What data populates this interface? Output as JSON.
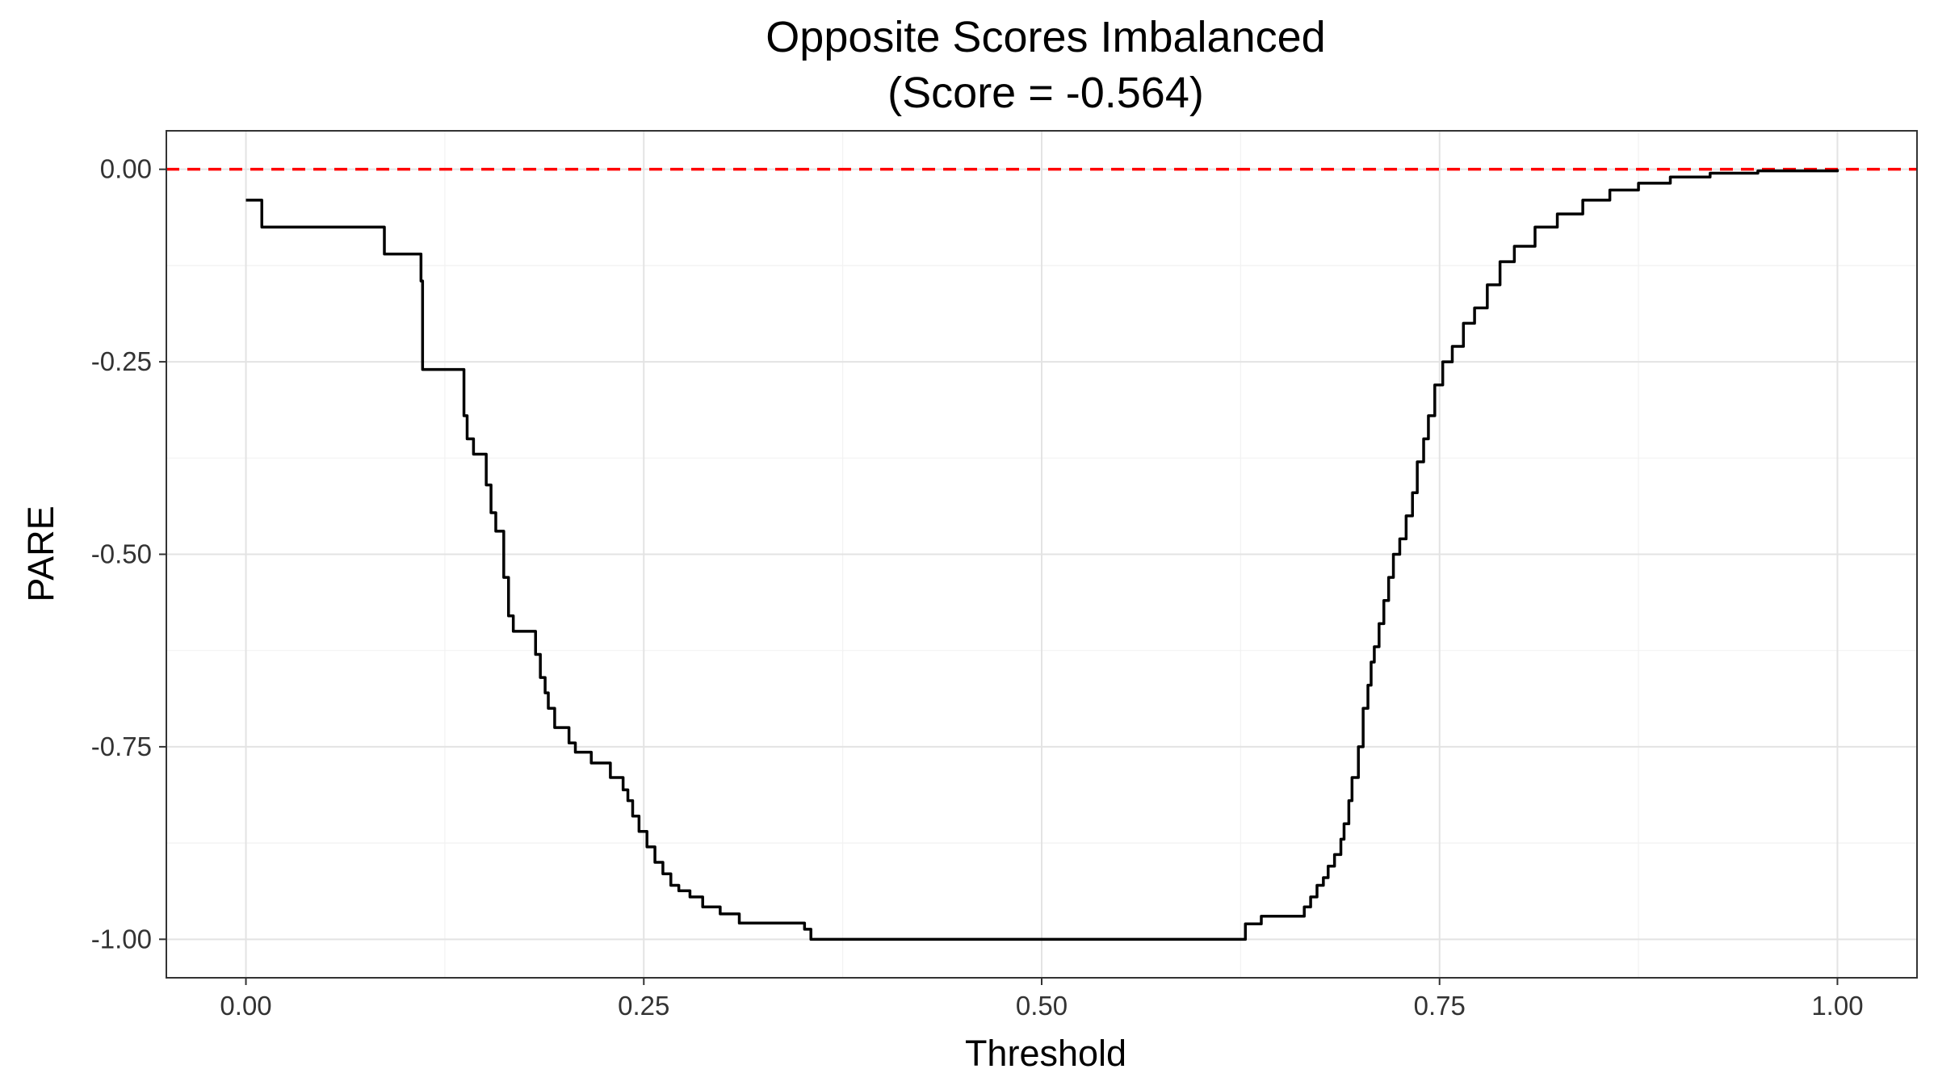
{
  "chart_data": {
    "type": "line",
    "title": "Opposite Scores Imbalanced",
    "subtitle": "(Score = -0.564)",
    "xlabel": "Threshold",
    "ylabel": "PARE",
    "xlim": [
      -0.05,
      1.05
    ],
    "ylim": [
      -1.05,
      0.05
    ],
    "x_ticks": [
      {
        "value": 0.0,
        "label": "0.00"
      },
      {
        "value": 0.25,
        "label": "0.25"
      },
      {
        "value": 0.5,
        "label": "0.50"
      },
      {
        "value": 0.75,
        "label": "0.75"
      },
      {
        "value": 1.0,
        "label": "1.00"
      }
    ],
    "y_ticks": [
      {
        "value": 0.0,
        "label": "0.00"
      },
      {
        "value": -0.25,
        "label": "-0.25"
      },
      {
        "value": -0.5,
        "label": "-0.50"
      },
      {
        "value": -0.75,
        "label": "-0.75"
      },
      {
        "value": -1.0,
        "label": "-1.00"
      }
    ],
    "grid": true,
    "reference_line": {
      "y": 0.0,
      "color": "#ff0000",
      "style": "dashed"
    },
    "series": [
      {
        "color": "#000000",
        "step": true,
        "points": [
          [
            0.0,
            -0.04
          ],
          [
            0.01,
            -0.04
          ],
          [
            0.01,
            -0.075
          ],
          [
            0.087,
            -0.075
          ],
          [
            0.087,
            -0.11
          ],
          [
            0.108,
            -0.11
          ],
          [
            0.11,
            -0.145
          ],
          [
            0.111,
            -0.26
          ],
          [
            0.135,
            -0.26
          ],
          [
            0.137,
            -0.32
          ],
          [
            0.139,
            -0.35
          ],
          [
            0.143,
            -0.37
          ],
          [
            0.149,
            -0.37
          ],
          [
            0.151,
            -0.41
          ],
          [
            0.154,
            -0.446
          ],
          [
            0.157,
            -0.47
          ],
          [
            0.16,
            -0.47
          ],
          [
            0.162,
            -0.53
          ],
          [
            0.165,
            -0.58
          ],
          [
            0.168,
            -0.6
          ],
          [
            0.18,
            -0.6
          ],
          [
            0.182,
            -0.63
          ],
          [
            0.185,
            -0.66
          ],
          [
            0.188,
            -0.68
          ],
          [
            0.19,
            -0.7
          ],
          [
            0.194,
            -0.725
          ],
          [
            0.2,
            -0.725
          ],
          [
            0.203,
            -0.745
          ],
          [
            0.207,
            -0.757
          ],
          [
            0.214,
            -0.757
          ],
          [
            0.217,
            -0.771
          ],
          [
            0.225,
            -0.771
          ],
          [
            0.229,
            -0.79
          ],
          [
            0.237,
            -0.806
          ],
          [
            0.24,
            -0.82
          ],
          [
            0.243,
            -0.84
          ],
          [
            0.247,
            -0.86
          ],
          [
            0.252,
            -0.88
          ],
          [
            0.257,
            -0.9
          ],
          [
            0.262,
            -0.915
          ],
          [
            0.267,
            -0.93
          ],
          [
            0.272,
            -0.937
          ],
          [
            0.279,
            -0.945
          ],
          [
            0.287,
            -0.958
          ],
          [
            0.298,
            -0.967
          ],
          [
            0.31,
            -0.979
          ],
          [
            0.345,
            -0.979
          ],
          [
            0.351,
            -0.987
          ],
          [
            0.355,
            -1.0
          ],
          [
            0.626,
            -1.0
          ],
          [
            0.628,
            -0.98
          ],
          [
            0.635,
            -0.98
          ],
          [
            0.638,
            -0.97
          ],
          [
            0.66,
            -0.97
          ],
          [
            0.665,
            -0.958
          ],
          [
            0.669,
            -0.945
          ],
          [
            0.673,
            -0.93
          ],
          [
            0.677,
            -0.92
          ],
          [
            0.68,
            -0.905
          ],
          [
            0.684,
            -0.89
          ],
          [
            0.688,
            -0.87
          ],
          [
            0.69,
            -0.85
          ],
          [
            0.693,
            -0.82
          ],
          [
            0.695,
            -0.79
          ],
          [
            0.699,
            -0.75
          ],
          [
            0.702,
            -0.7
          ],
          [
            0.705,
            -0.67
          ],
          [
            0.707,
            -0.64
          ],
          [
            0.709,
            -0.62
          ],
          [
            0.712,
            -0.59
          ],
          [
            0.715,
            -0.56
          ],
          [
            0.718,
            -0.53
          ],
          [
            0.721,
            -0.5
          ],
          [
            0.725,
            -0.48
          ],
          [
            0.729,
            -0.45
          ],
          [
            0.733,
            -0.42
          ],
          [
            0.736,
            -0.38
          ],
          [
            0.74,
            -0.35
          ],
          [
            0.743,
            -0.32
          ],
          [
            0.747,
            -0.28
          ],
          [
            0.752,
            -0.25
          ],
          [
            0.758,
            -0.23
          ],
          [
            0.765,
            -0.2
          ],
          [
            0.772,
            -0.18
          ],
          [
            0.78,
            -0.15
          ],
          [
            0.788,
            -0.12
          ],
          [
            0.797,
            -0.1
          ],
          [
            0.81,
            -0.075
          ],
          [
            0.824,
            -0.058
          ],
          [
            0.84,
            -0.04
          ],
          [
            0.857,
            -0.027
          ],
          [
            0.875,
            -0.018
          ],
          [
            0.895,
            -0.01
          ],
          [
            0.92,
            -0.005
          ],
          [
            0.95,
            -0.002
          ],
          [
            1.0,
            0.0
          ]
        ]
      }
    ]
  }
}
